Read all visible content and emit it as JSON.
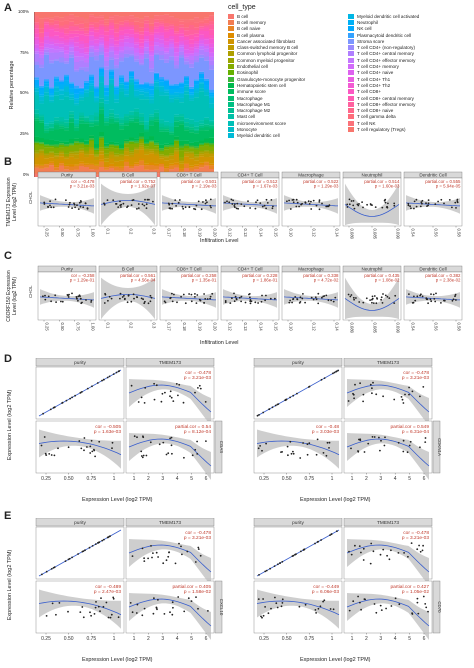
{
  "panels": {
    "A": "A",
    "B": "B",
    "C": "C",
    "D": "D",
    "E": "E"
  },
  "panelA": {
    "ylabel": "Relative percentage",
    "yticks": [
      "100%",
      "75%",
      "50%",
      "25%",
      "0%"
    ],
    "legend_title": "cell_type",
    "cell_types_col1": [
      "B cell",
      "B cell memory",
      "B cell naive",
      "B cell plasma",
      "Cancer associated fibroblast",
      "Class-switched memory B cell",
      "Common lymphoid progenitor",
      "Common myeloid progenitor",
      "Endothelial cell",
      "Eosinophil",
      "Granulocyte-monocyte progenitor",
      "Hematopoietic stem cell",
      "immune score",
      "Macrophage",
      "Macrophage M1",
      "Macrophage M2",
      "Mast cell",
      "microenvironment score",
      "Monocyte",
      "Myeloid dendritic cell"
    ],
    "cell_types_col2": [
      "Myeloid dendritic cell activated",
      "Neutrophil",
      "NK cell",
      "Plasmacytoid dendritic cell",
      "Stroma score",
      "T cell CD4+ (non-regulatory)",
      "T cell CD4+ central memory",
      "T cell CD4+ effector memory",
      "T cell CD4+ memory",
      "T cell CD4+ naive",
      "T cell CD4+ Th1",
      "T cell CD4+ Th2",
      "T cell CD8+",
      "T cell CD8+ central memory",
      "T cell CD8+ effector memory",
      "T cell CD8+ naive",
      "T cell gamma delta",
      "T cell NK",
      "T cell regulatory (Tregs)"
    ],
    "colors_col1": [
      "#f8766d",
      "#f27d52",
      "#e88526",
      "#de8c00",
      "#d09400",
      "#c09b00",
      "#ae9f00",
      "#9aa500",
      "#83ab00",
      "#66b000",
      "#3db53a",
      "#00b94e",
      "#00bc5f",
      "#00be70",
      "#00c083",
      "#00c094",
      "#00c1a7",
      "#00c0b8",
      "#00bdc8",
      "#00bad7"
    ],
    "colors_col2": [
      "#00b6e5",
      "#00b0f6",
      "#00a9ff",
      "#35a2ff",
      "#7c96ff",
      "#9a8bff",
      "#b07fff",
      "#c377ff",
      "#d26bfb",
      "#de62ef",
      "#ea5ee2",
      "#f35ad3",
      "#fc58c3",
      "#ff5bb2",
      "#ff619f",
      "#ff678b",
      "#fe6d7b",
      "#fb727a",
      "#f8766d"
    ]
  },
  "panelB": {
    "ylabel_line1": "TMEM173 Expression",
    "ylabel_line2": "Level (log2 TPM)",
    "side": "CHOL",
    "xlabel": "Infiltration Level",
    "facets": [
      {
        "name": "Purity",
        "stat1": "cor = -0.478",
        "stat2": "p = 3.21e-03",
        "ticks": [
          "0.25",
          "0.50",
          "0.75",
          "1.00"
        ]
      },
      {
        "name": "B Cell",
        "stat1": "partial.cor = 0.752",
        "stat2": "p = 1.92e-07",
        "ticks": [
          "0.1",
          "0.2",
          "0.3"
        ]
      },
      {
        "name": "CD8+ T Cell",
        "stat1": "partial.cor = 0.501",
        "stat2": "p = 2.19e-03",
        "ticks": [
          "0.17",
          "0.18",
          "0.19",
          "0.20"
        ]
      },
      {
        "name": "CD4+ T Cell",
        "stat1": "partial.cor = 0.512",
        "stat2": "p = 1.67e-03",
        "ticks": [
          "0.12",
          "0.13",
          "0.14",
          "0.15"
        ]
      },
      {
        "name": "Macrophage",
        "stat1": "partial.cor = 0.522",
        "stat2": "p = 1.29e-03",
        "ticks": [
          "0.10",
          "0.12",
          "0.14"
        ]
      },
      {
        "name": "Neutrophil",
        "stat1": "partial.cor = 0.514",
        "stat2": "p = 1.60e-03",
        "ticks": [
          "0.080",
          "0.085",
          "0.090"
        ]
      },
      {
        "name": "Dendritic Cell",
        "stat1": "partial.cor = 0.555",
        "stat2": "p = 5.94e-05",
        "ticks": [
          "0.54",
          "0.56",
          "0.58"
        ]
      }
    ]
  },
  "panelC": {
    "ylabel_line1": "C6ORF150 Expression",
    "ylabel_line2": "Level (log2 TPM)",
    "side": "CHOL",
    "xlabel": "Infiltration Level",
    "facets": [
      {
        "name": "Purity",
        "stat1": "cor = -0.258",
        "stat2": "p = 1.29e-01",
        "ticks": [
          "0.25",
          "0.50",
          "0.75",
          "1.00"
        ]
      },
      {
        "name": "B Cell",
        "stat1": "partial.cor = 0.561",
        "stat2": "p = 4.56e-04",
        "ticks": [
          "0.1",
          "0.2",
          "0.3"
        ]
      },
      {
        "name": "CD8+ T Cell",
        "stat1": "partial.cor = 0.258",
        "stat2": "p = 1.35e-01",
        "ticks": [
          "0.17",
          "0.18",
          "0.19",
          "0.20"
        ]
      },
      {
        "name": "CD4+ T Cell",
        "stat1": "partial.cor = 0.228",
        "stat2": "p = 1.86e-01",
        "ticks": [
          "0.12",
          "0.13",
          "0.14",
          "0.15"
        ]
      },
      {
        "name": "Macrophage",
        "stat1": "partial.cor = 0.338",
        "stat2": "p = 4.72e-02",
        "ticks": [
          "0.10",
          "0.12",
          "0.14"
        ]
      },
      {
        "name": "Neutrophil",
        "stat1": "partial.cor = 0.435",
        "stat2": "p = 1.08e-02",
        "ticks": [
          "0.080",
          "0.085",
          "0.090"
        ]
      },
      {
        "name": "Dendritic Cell",
        "stat1": "partial.cor = 0.382",
        "stat2": "p = 2.38e-02",
        "ticks": [
          "0.54",
          "0.56",
          "0.58"
        ]
      }
    ]
  },
  "panelD": {
    "ylabel": "Expression Level (log2 TPM)",
    "xlabel": "Expression Level (log2 TPM)",
    "left": {
      "header_purity": "purity",
      "header_gene": "TMEM173",
      "row_label": "CGAS",
      "s1": "cor = -0.478",
      "s2": "p = 3.21e-03",
      "s3": "cor = -0.505",
      "s4": "p = 1.63e-03",
      "s5": "partial.cor = 0.54",
      "s6": "p = 8.12e-04",
      "xticks1": [
        "0.25",
        "0.50",
        "0.75",
        "1"
      ],
      "xticks2": [
        "1",
        "2",
        "3",
        "4",
        "5",
        "6"
      ]
    },
    "right": {
      "header_purity": "purity",
      "header_gene": "TMEM173",
      "row_label": "CDKN1A",
      "s1": "cor = -0.478",
      "s2": "p = 3.21e-03",
      "s3": "cor = -0.48",
      "s4": "p = 3.03e-03",
      "s5": "partial.cor = 0.549",
      "s6": "p = 6.31e-04",
      "xticks1": [
        "0.25",
        "0.50",
        "0.75",
        "1"
      ],
      "xticks2": [
        "1",
        "2",
        "3",
        "4",
        "5",
        "6"
      ]
    }
  },
  "panelE": {
    "ylabel": "Expression Level (log2 TPM)",
    "xlabel": "Expression Level (log2 TPM)",
    "left": {
      "header_purity": "purity",
      "header_gene": "TMEM173",
      "row_label": "CXCL10",
      "s1": "cor = -0.478",
      "s2": "p = 3.21e-03",
      "s3": "cor = -0.489",
      "s4": "p = 2.47e-03",
      "s5": "partial.cor = 0.405",
      "s6": "p = 1.58e-02",
      "xticks1": [
        "0.25",
        "0.50",
        "0.75",
        "1"
      ],
      "xticks2": [
        "1",
        "2",
        "3",
        "4",
        "5",
        "6"
      ]
    },
    "right": {
      "header_purity": "purity",
      "header_gene": "TMEM173",
      "row_label": "CD70",
      "s1": "cor = -0.478",
      "s2": "p = 3.21e-03",
      "s3": "cor = -0.449",
      "s4": "p = 6.06e-03",
      "s5": "partial.cor = 0.427",
      "s6": "p = 1.05e-02",
      "xticks1": [
        "0.25",
        "0.50",
        "0.75",
        "1"
      ],
      "xticks2": [
        "1",
        "2",
        "3",
        "4",
        "5",
        "6"
      ]
    }
  }
}
